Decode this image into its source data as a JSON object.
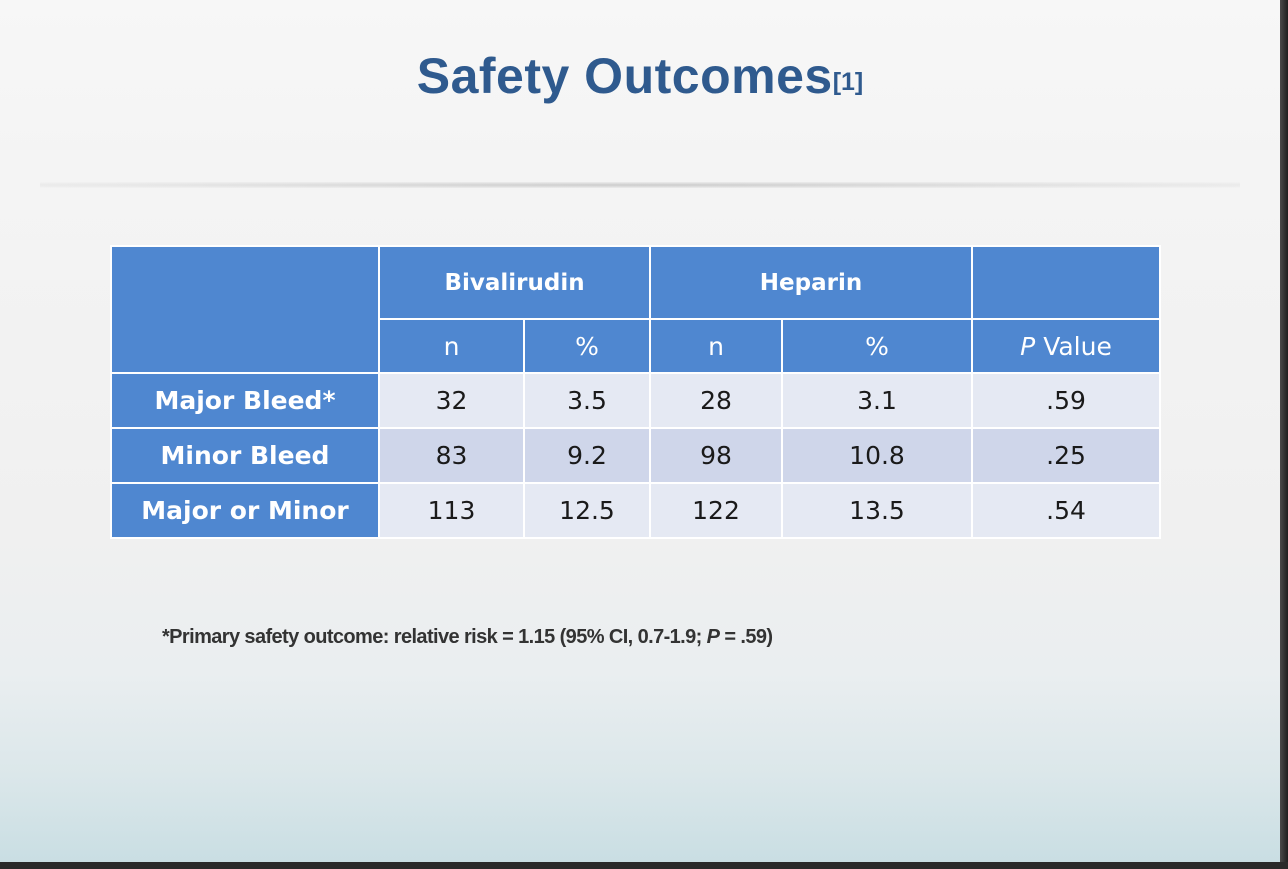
{
  "slide": {
    "title": "Safety Outcomes",
    "title_ref": "[1]",
    "colors": {
      "title": "#2f5a8e",
      "header_fill": "#4f87d0",
      "row_light": "#e5e9f3",
      "row_dark": "#cfd6ea"
    }
  },
  "table": {
    "groups": {
      "bivalirudin": "Bivalirudin",
      "heparin": "Heparin"
    },
    "subheaders": {
      "biv_n": "n",
      "biv_pct": "%",
      "hep_n": "n",
      "hep_pct": "%",
      "p_italic": "P",
      "p_rest": " Value"
    },
    "rows": [
      {
        "label": "Major Bleed*",
        "biv_n": "32",
        "biv_pct": "3.5",
        "hep_n": "28",
        "hep_pct": "3.1",
        "p": ".59"
      },
      {
        "label": "Minor Bleed",
        "biv_n": "83",
        "biv_pct": "9.2",
        "hep_n": "98",
        "hep_pct": "10.8",
        "p": ".25"
      },
      {
        "label": "Major or Minor",
        "biv_n": "113",
        "biv_pct": "12.5",
        "hep_n": "122",
        "hep_pct": "13.5",
        "p": ".54"
      }
    ]
  },
  "footnote": {
    "part1": "*Primary safety outcome: relative risk = 1.15 (95% CI, 0.7-1.9; ",
    "p_italic": "P",
    "part2": " = .59)"
  }
}
